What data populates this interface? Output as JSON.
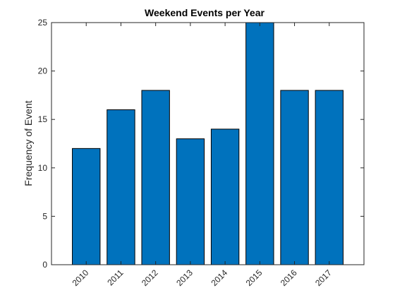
{
  "chart_data": {
    "type": "bar",
    "title": "Weekend Events per Year",
    "xlabel": "",
    "ylabel": "Frequency of Event",
    "categories": [
      "2010",
      "2011",
      "2012",
      "2013",
      "2014",
      "2015",
      "2016",
      "2017"
    ],
    "values": [
      12,
      16,
      18,
      13,
      14,
      25,
      18,
      18
    ],
    "ylim": [
      0,
      25
    ],
    "yticks": [
      0,
      5,
      10,
      15,
      20,
      25
    ],
    "grid": false,
    "legend": "none",
    "bar_color": "#0072bd",
    "bar_edge_color": "#000000",
    "axis_color": "#262626"
  }
}
